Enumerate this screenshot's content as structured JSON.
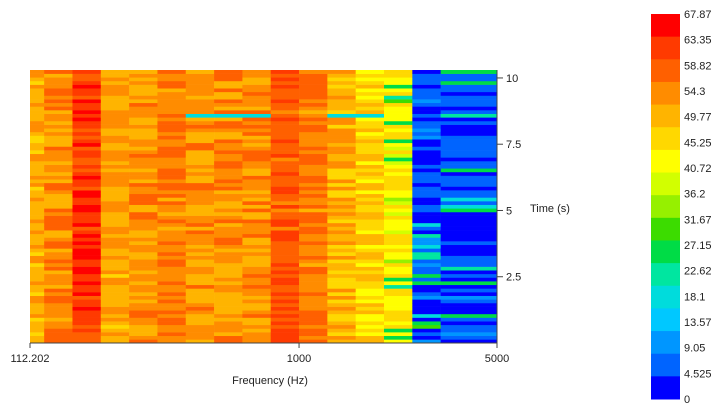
{
  "chart_data": {
    "type": "heatmap",
    "title": "",
    "xlabel": "Frequency (Hz)",
    "ylabel": "Time (s)",
    "x_scale": "log",
    "xlim": [
      112.202,
      5000
    ],
    "ylim": [
      0,
      10.3
    ],
    "x_tick_labels": [
      "112.202",
      "1000",
      "5000"
    ],
    "x_ticks": [
      112.202,
      1000,
      5000
    ],
    "y_ticks": [
      2.5,
      5,
      7.5,
      10
    ],
    "y_tick_labels": [
      "2.5",
      "5",
      "7.5",
      "10"
    ],
    "colorbar": {
      "labels": [
        "67.87",
        "63.35",
        "58.82",
        "54.3",
        "49.77",
        "45.25",
        "40.72",
        "36.2",
        "31.67",
        "27.15",
        "22.62",
        "18.1",
        "13.57",
        "9.05",
        "4.525",
        "0"
      ],
      "colors": [
        "#ff0000",
        "#ff3a00",
        "#ff6000",
        "#ff8c00",
        "#ffb400",
        "#ffd800",
        "#ffff00",
        "#d2ff00",
        "#96f000",
        "#3cdc00",
        "#00dc46",
        "#00e6a0",
        "#00dcdc",
        "#00c8ff",
        "#0096ff",
        "#0064ff",
        "#0000ff"
      ]
    },
    "band_edges_hz": [
      112.202,
      125.89,
      158.49,
      199.53,
      251.19,
      316.23,
      398.11,
      501.19,
      630.96,
      794.33,
      1000,
      1258.9,
      1584.9,
      1995.3,
      2511.9,
      3162.3,
      5000
    ],
    "band_mean_levels": [
      52,
      56,
      64,
      53,
      55,
      57,
      54,
      55,
      55,
      61,
      57,
      51,
      47,
      44,
      3,
      2
    ],
    "time_steps": 75,
    "dips": [
      {
        "from_hz": 398.11,
        "to_hz": 794.33,
        "time_s": 8.5,
        "level": 16
      },
      {
        "from_hz": 1258.9,
        "to_hz": 1995.3,
        "time_s": 8.5,
        "level": 16
      }
    ]
  }
}
